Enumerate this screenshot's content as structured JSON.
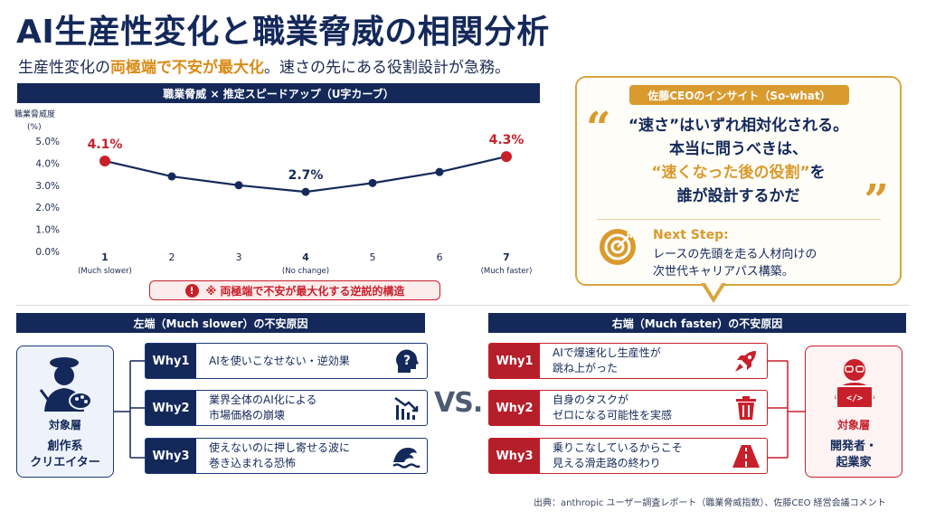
{
  "title": "AI生産性変化と職業脅威の相関分析",
  "subtitle": {
    "part1": "生産性変化の",
    "highlight": "両極端で不安が最大化",
    "part2": "。速さの先にある役割設計が急務。"
  },
  "chart_header": "職業脅威 × 推定スピードアップ（U字カーブ）",
  "chart_data": {
    "type": "line",
    "title": "職業脅威 × 推定スピードアップ（U字カーブ）",
    "ylabel": "職業脅威度",
    "yunit": "(%)",
    "xlabel": "",
    "x": [
      1,
      2,
      3,
      4,
      5,
      6,
      7
    ],
    "xtick_labels": [
      "1",
      "2",
      "3",
      "4",
      "5",
      "6",
      "7"
    ],
    "xtick_sublabels": [
      "(Much slower)",
      "",
      "",
      "(No change)",
      "",
      "",
      "(Much faster)"
    ],
    "ytick_labels": [
      "0.0%",
      "1.0%",
      "2.0%",
      "3.0%",
      "4.0%",
      "5.0%"
    ],
    "ylim": [
      0,
      5
    ],
    "series": [
      {
        "values": [
          4.1,
          3.4,
          3.0,
          2.7,
          3.1,
          3.6,
          4.3
        ]
      }
    ],
    "annotations": [
      {
        "x": 1,
        "label": "4.1%",
        "color": "#c8202b",
        "highlight": true
      },
      {
        "x": 4,
        "label": "2.7%",
        "color": "#14295a",
        "highlight": false
      },
      {
        "x": 7,
        "label": "4.3%",
        "color": "#c8202b",
        "highlight": true
      }
    ],
    "line_color": "#14295a",
    "grid": false
  },
  "paradox_note": "※ 両極端で不安が最大化する逆説的構造",
  "insight": {
    "tag": "佐藤CEOのインサイト（So-what）",
    "quote_line1": "“速さ”はいずれ相対化される。",
    "quote_line2": "本当に問うべきは、",
    "quote_line3_highlight": "“速くなった後の役割”",
    "quote_line3_rest": "を",
    "quote_line4": "誰が設計するかだ",
    "next_step_label": "Next Step:",
    "next_step_line1": "レースの先頭を走る人材向けの",
    "next_step_line2": "次世代キャリアパス構築。"
  },
  "left": {
    "header": "左端（Much slower）の不安原因",
    "target_label": "対象層",
    "target_name_line1": "創作系",
    "target_name_line2": "クリエイター",
    "whys": [
      {
        "badge": "Why1",
        "text": "AIを使いこなせない・逆効果",
        "icon": "question-head-icon"
      },
      {
        "badge": "Why2",
        "text": "業界全体のAI化による\n市場価格の崩壊",
        "icon": "declining-chart-icon"
      },
      {
        "badge": "Why3",
        "text": "使えないのに押し寄せる波に\n巻き込まれる恐怖",
        "icon": "wave-icon"
      }
    ]
  },
  "vs": "VS.",
  "right": {
    "header": "右端（Much faster）の不安原因",
    "target_label": "対象層",
    "target_name_line1": "開発者・",
    "target_name_line2": "起業家",
    "whys": [
      {
        "badge": "Why1",
        "text": "AIで爆速化し生産性が\n跳ね上がった",
        "icon": "rocket-icon"
      },
      {
        "badge": "Why2",
        "text": "自身のタスクが\nゼロになる可能性を実感",
        "icon": "trash-icon"
      },
      {
        "badge": "Why3",
        "text": "乗りこなしているからこそ\n見える滑走路の終わり",
        "icon": "runway-icon"
      }
    ]
  },
  "source": "出典：anthropic ユーザー調査レポート（職業脅威指数）、佐藤CEO 経営会議コメント",
  "colors": {
    "navy": "#14295a",
    "red": "#c8202b",
    "gold": "#d99a2e"
  }
}
